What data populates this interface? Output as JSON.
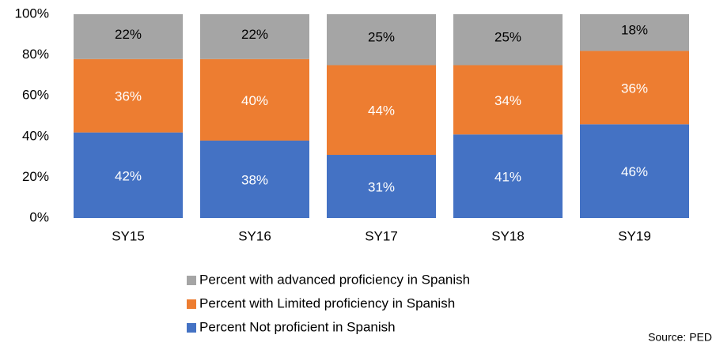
{
  "chart_data": {
    "type": "stacked_bar",
    "categories": [
      "SY15",
      "SY16",
      "SY17",
      "SY18",
      "SY19"
    ],
    "series": [
      {
        "name": "Percent Not proficient in Spanish",
        "color": "#4472c4",
        "values": [
          42,
          38,
          31,
          41,
          46
        ],
        "value_labels": [
          "42%",
          "38%",
          "31%",
          "41%",
          "46%"
        ]
      },
      {
        "name": "Percent with Limited proficiency in Spanish",
        "color": "#ed7d31",
        "values": [
          36,
          40,
          44,
          34,
          36
        ],
        "value_labels": [
          "36%",
          "40%",
          "44%",
          "34%",
          "36%"
        ]
      },
      {
        "name": "Percent with advanced proficiency in Spanish",
        "color": "#a5a5a5",
        "values": [
          22,
          22,
          25,
          25,
          18
        ],
        "value_labels": [
          "22%",
          "22%",
          "25%",
          "25%",
          "18%"
        ]
      }
    ],
    "ylim": [
      0,
      100
    ],
    "yticks": [
      {
        "value": 0,
        "label": "0%"
      },
      {
        "value": 20,
        "label": "20%"
      },
      {
        "value": 40,
        "label": "40%"
      },
      {
        "value": 60,
        "label": "60%"
      },
      {
        "value": 80,
        "label": "80%"
      },
      {
        "value": 100,
        "label": "100%"
      }
    ],
    "source": "Source: PED"
  }
}
